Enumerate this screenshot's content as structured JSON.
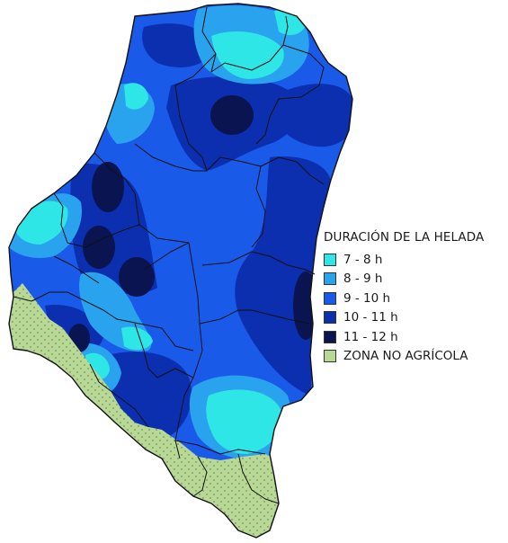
{
  "legend": {
    "title": "DURACIÓN DE LA HELADA",
    "items": [
      {
        "label": "7 - 8 h",
        "color": "#2ee6e6"
      },
      {
        "label": "8 - 9 h",
        "color": "#2aa3ee"
      },
      {
        "label": "9 - 10 h",
        "color": "#1a5ae8"
      },
      {
        "label": "10 - 11 h",
        "color": "#0c2fb0"
      },
      {
        "label": "11 - 12 h",
        "color": "#0a1450"
      },
      {
        "label": "ZONA NO AGRÍCOLA",
        "color": "#b8d896"
      }
    ]
  },
  "colors": {
    "band_7_8": "#2ee6e6",
    "band_8_9": "#2aa3ee",
    "band_9_10": "#1a5ae8",
    "band_10_11": "#0c2fb0",
    "band_11_12": "#0a1450",
    "non_agricultural": "#b8d896",
    "boundary": "#111111"
  }
}
